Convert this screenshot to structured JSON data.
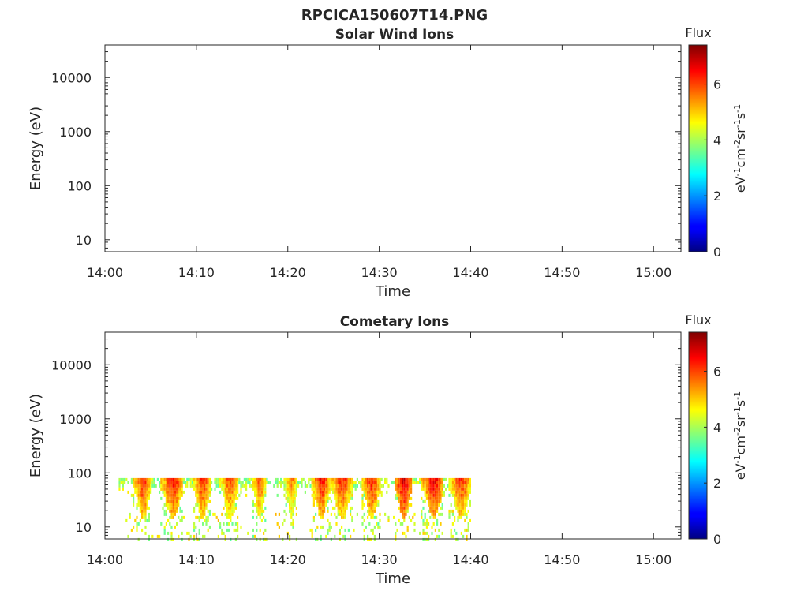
{
  "figure_title": "RPCICA150607T14.PNG",
  "chart_data": [
    {
      "type": "heatmap",
      "title": "Solar Wind Ions",
      "xlabel": "Time",
      "ylabel": "Energy (eV)",
      "x_ticks": [
        "14:00",
        "14:10",
        "14:20",
        "14:30",
        "14:40",
        "14:50",
        "15:00"
      ],
      "xlim": [
        "14:00",
        "15:03"
      ],
      "y_scale": "log",
      "y_ticks": [
        10,
        100,
        1000,
        10000
      ],
      "y_tick_labels": [
        "10",
        "100",
        "1000",
        "10000"
      ],
      "ylim": [
        6,
        40000
      ],
      "grid": false,
      "colorbar": {
        "title": "Flux",
        "label": "eV-1cm-2sr-1s-1",
        "range": [
          0,
          7.4
        ],
        "ticks": [
          0,
          2,
          4,
          6
        ],
        "colormap": "jet"
      },
      "z_values": []
    },
    {
      "type": "heatmap",
      "title": "Cometary Ions",
      "xlabel": "Time",
      "ylabel": "Energy (eV)",
      "x_ticks": [
        "14:00",
        "14:10",
        "14:20",
        "14:30",
        "14:40",
        "14:50",
        "15:00"
      ],
      "xlim": [
        "14:00",
        "15:03"
      ],
      "y_scale": "log",
      "y_ticks": [
        10,
        100,
        1000,
        10000
      ],
      "y_tick_labels": [
        "10",
        "100",
        "1000",
        "10000"
      ],
      "ylim": [
        6,
        40000
      ],
      "grid": false,
      "colorbar": {
        "title": "Flux",
        "label": "eV-1cm-2sr-1s-1",
        "range": [
          0,
          7.4
        ],
        "ticks": [
          0,
          2,
          4,
          6
        ],
        "colormap": "jet"
      },
      "data_extent": {
        "x": [
          "14:01:30",
          "14:40:00"
        ],
        "y": [
          6,
          80
        ]
      },
      "bursts": [
        {
          "start": "14:03:00",
          "end": "14:05:00",
          "peak": 6.3
        },
        {
          "start": "14:06:00",
          "end": "14:08:30",
          "peak": 6.4
        },
        {
          "start": "14:09:30",
          "end": "14:11:30",
          "peak": 6.2
        },
        {
          "start": "14:12:30",
          "end": "14:14:30",
          "peak": 6.0
        },
        {
          "start": "14:16:00",
          "end": "14:17:30",
          "peak": 6.0
        },
        {
          "start": "14:19:30",
          "end": "14:21:00",
          "peak": 5.6
        },
        {
          "start": "14:22:30",
          "end": "14:24:30",
          "peak": 6.4
        },
        {
          "start": "14:24:30",
          "end": "14:27:00",
          "peak": 6.2
        },
        {
          "start": "14:28:00",
          "end": "14:30:00",
          "peak": 6.3
        },
        {
          "start": "14:31:30",
          "end": "14:33:30",
          "peak": 6.8
        },
        {
          "start": "14:34:30",
          "end": "14:37:00",
          "peak": 6.6
        },
        {
          "start": "14:37:30",
          "end": "14:40:00",
          "peak": 6.2
        }
      ]
    }
  ]
}
